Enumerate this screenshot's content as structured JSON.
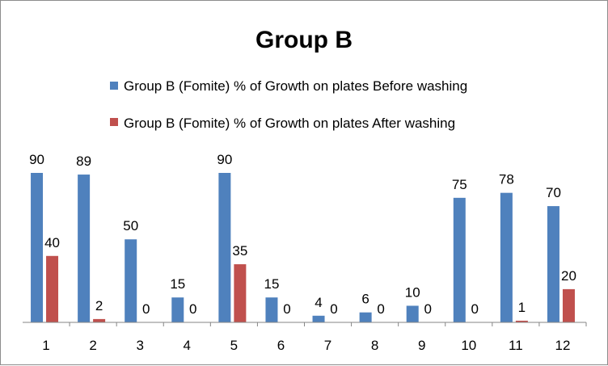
{
  "colors": {
    "before": "#4f81bd",
    "after": "#c0504d",
    "axis": "#868686"
  },
  "chart_data": {
    "type": "bar",
    "title": "Group B",
    "xlabel": "",
    "ylabel": "",
    "categories": [
      "1",
      "2",
      "3",
      "4",
      "5",
      "6",
      "7",
      "8",
      "9",
      "10",
      "11",
      "12"
    ],
    "series": [
      {
        "name": "Group B (Fomite) % of Growth on plates Before washing",
        "values": [
          90,
          89,
          50,
          15,
          90,
          15,
          4,
          6,
          10,
          75,
          78,
          70
        ]
      },
      {
        "name": "Group B (Fomite) % of Growth on plates After washing",
        "values": [
          40,
          2,
          0,
          0,
          35,
          0,
          0,
          0,
          0,
          0,
          1,
          20
        ]
      }
    ],
    "ylim": [
      0,
      90
    ],
    "grid": false,
    "legend_position": "top"
  }
}
